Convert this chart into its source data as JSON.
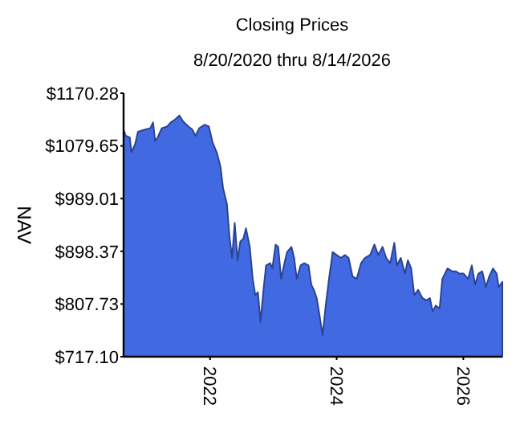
{
  "chart_data": {
    "type": "area",
    "title": "Closing Prices",
    "subtitle": "8/20/2020 thru 8/14/2026",
    "ylabel": "NAV",
    "x": [
      "2020-08-20",
      "2020-09-01",
      "2020-09-25",
      "2020-10-04",
      "2020-10-26",
      "2020-11-11",
      "2020-12-26",
      "2021-01-21",
      "2021-02-06",
      "2021-02-18",
      "2021-03-06",
      "2021-03-28",
      "2021-04-28",
      "2021-05-19",
      "2021-06-13",
      "2021-07-08",
      "2021-07-29",
      "2021-08-29",
      "2021-09-20",
      "2021-10-09",
      "2021-10-30",
      "2021-11-30",
      "2021-12-25",
      "2022-01-16",
      "2022-02-10",
      "2022-03-02",
      "2022-03-17",
      "2022-04-08",
      "2022-04-23",
      "2022-05-08",
      "2022-05-23",
      "2022-06-09",
      "2022-06-24",
      "2022-07-12",
      "2022-07-27",
      "2022-08-18",
      "2022-09-04",
      "2022-09-19",
      "2022-10-04",
      "2022-10-19",
      "2022-11-05",
      "2022-11-20",
      "2022-12-14",
      "2022-12-26",
      "2023-01-14",
      "2023-01-29",
      "2023-02-15",
      "2023-03-06",
      "2023-03-21",
      "2023-04-15",
      "2023-05-01",
      "2023-05-16",
      "2023-06-07",
      "2023-06-28",
      "2023-07-23",
      "2023-08-08",
      "2023-08-23",
      "2023-09-08",
      "2023-09-23",
      "2023-10-12",
      "2023-10-30",
      "2023-11-18",
      "2023-12-09",
      "2024-01-01",
      "2024-01-25",
      "2024-02-19",
      "2024-03-10",
      "2024-04-02",
      "2024-04-26",
      "2024-05-21",
      "2024-06-12",
      "2024-07-12",
      "2024-08-06",
      "2024-08-28",
      "2024-09-22",
      "2024-10-13",
      "2024-11-05",
      "2024-11-29",
      "2024-12-14",
      "2025-01-05",
      "2025-01-29",
      "2025-02-15",
      "2025-03-06",
      "2025-03-24",
      "2025-04-15",
      "2025-05-10",
      "2025-06-01",
      "2025-06-22",
      "2025-07-08",
      "2025-07-26",
      "2025-08-17",
      "2025-09-02",
      "2025-10-02",
      "2025-10-27",
      "2025-11-18",
      "2025-12-09",
      "2026-01-03",
      "2026-01-28",
      "2026-02-19",
      "2026-03-10",
      "2026-03-29",
      "2026-04-20",
      "2026-05-11",
      "2026-05-30",
      "2026-06-21",
      "2026-07-12",
      "2026-07-24",
      "2026-08-14"
    ],
    "series": [
      {
        "color": "#4169e1",
        "values": [
          1108,
          1097,
          1094,
          1069,
          1083,
          1104,
          1108,
          1110,
          1120,
          1088,
          1095,
          1110,
          1113,
          1120,
          1125,
          1132,
          1122,
          1113,
          1108,
          1097,
          1110,
          1116,
          1113,
          1085,
          1067,
          1044,
          1007,
          980,
          924,
          887,
          947,
          883,
          915,
          920,
          938,
          906,
          851,
          823,
          828,
          777,
          832,
          874,
          878,
          869,
          910,
          906,
          851,
          878,
          897,
          906,
          887,
          851,
          874,
          878,
          874,
          841,
          832,
          818,
          791,
          754,
          805,
          851,
          897,
          892,
          887,
          892,
          887,
          855,
          851,
          878,
          887,
          892,
          910,
          892,
          906,
          887,
          878,
          913,
          874,
          887,
          860,
          883,
          869,
          823,
          832,
          818,
          814,
          818,
          795,
          805,
          800,
          851,
          869,
          864,
          864,
          860,
          860,
          851,
          874,
          841,
          860,
          864,
          837,
          855,
          869,
          860,
          837,
          846
        ]
      }
    ],
    "xlim": [
      "2020-08-20",
      "2026-08-14"
    ],
    "xticks": [
      {
        "value": "2022-01-01",
        "label": "2022"
      },
      {
        "value": "2024-01-01",
        "label": "2024"
      },
      {
        "value": "2026-01-01",
        "label": "2026"
      }
    ],
    "ylim": [
      717.1,
      1170.28
    ],
    "yticks": [
      {
        "value": 717.1,
        "label": "$717.10"
      },
      {
        "value": 807.73,
        "label": "$807.73"
      },
      {
        "value": 898.37,
        "label": "$898.37"
      },
      {
        "value": 989.01,
        "label": "$989.01"
      },
      {
        "value": 1079.65,
        "label": "$1079.65"
      },
      {
        "value": 1170.28,
        "label": "$1170.28"
      }
    ],
    "grid": false
  }
}
